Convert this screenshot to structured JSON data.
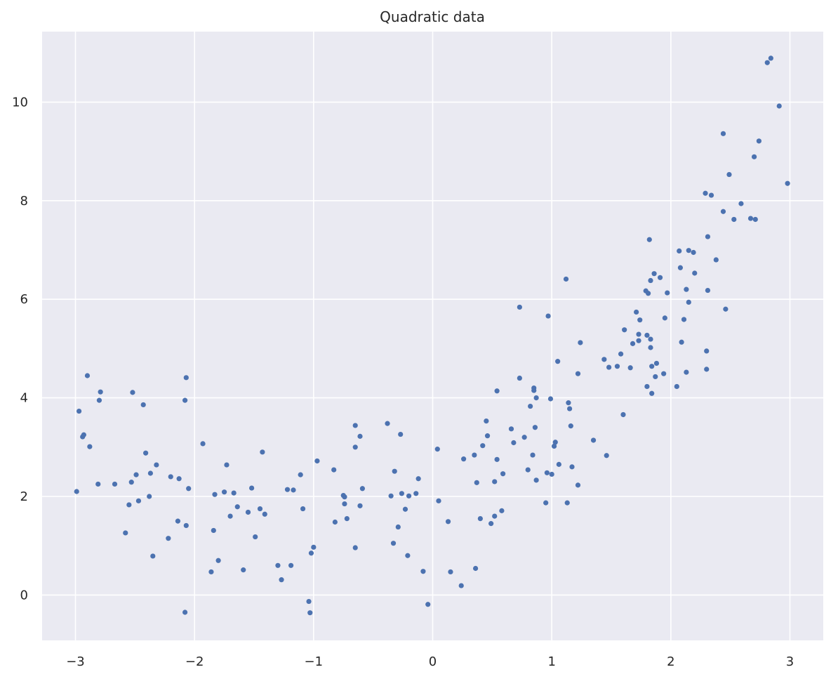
{
  "chart_data": {
    "type": "scatter",
    "title": "Quadratic data",
    "xlabel": "",
    "ylabel": "",
    "xlim": [
      -3.28,
      3.28
    ],
    "ylim": [
      -0.92,
      11.43
    ],
    "xticks": [
      -3,
      -2,
      -1,
      0,
      1,
      2,
      3
    ],
    "xtick_labels": [
      "−3",
      "−2",
      "−1",
      "0",
      "1",
      "2",
      "3"
    ],
    "yticks": [
      0,
      2,
      4,
      6,
      8,
      10
    ],
    "ytick_labels": [
      "0",
      "2",
      "4",
      "6",
      "8",
      "10"
    ],
    "grid": true,
    "style": "seaborn-darkgrid",
    "colors": {
      "background": "#eaeaf2",
      "grid": "#ffffff",
      "point": "#4c72b0"
    },
    "series": [
      {
        "points": [
          [
            -2.99,
            2.1
          ],
          [
            -2.97,
            3.73
          ],
          [
            -2.94,
            3.21
          ],
          [
            -2.93,
            3.25
          ],
          [
            -2.9,
            4.45
          ],
          [
            -2.88,
            3.01
          ],
          [
            -2.81,
            2.25
          ],
          [
            -2.8,
            3.95
          ],
          [
            -2.79,
            4.12
          ],
          [
            -2.67,
            2.25
          ],
          [
            -2.58,
            1.26
          ],
          [
            -2.55,
            1.83
          ],
          [
            -2.53,
            2.29
          ],
          [
            -2.52,
            4.11
          ],
          [
            -2.49,
            2.44
          ],
          [
            -2.47,
            1.91
          ],
          [
            -2.43,
            3.86
          ],
          [
            -2.41,
            2.88
          ],
          [
            -2.38,
            2.0
          ],
          [
            -2.37,
            2.47
          ],
          [
            -2.35,
            0.79
          ],
          [
            -2.32,
            2.64
          ],
          [
            -2.22,
            1.15
          ],
          [
            -2.2,
            2.4
          ],
          [
            -2.14,
            1.5
          ],
          [
            -2.13,
            2.36
          ],
          [
            -2.08,
            3.95
          ],
          [
            -2.08,
            -0.35
          ],
          [
            -2.07,
            4.41
          ],
          [
            -2.07,
            1.41
          ],
          [
            -2.05,
            2.16
          ],
          [
            -1.93,
            3.07
          ],
          [
            -1.86,
            0.47
          ],
          [
            -1.84,
            1.31
          ],
          [
            -1.83,
            2.04
          ],
          [
            -1.8,
            0.7
          ],
          [
            -1.75,
            2.09
          ],
          [
            -1.73,
            2.64
          ],
          [
            -1.7,
            1.6
          ],
          [
            -1.67,
            2.07
          ],
          [
            -1.64,
            1.79
          ],
          [
            -1.59,
            0.51
          ],
          [
            -1.55,
            1.68
          ],
          [
            -1.52,
            2.17
          ],
          [
            -1.49,
            1.18
          ],
          [
            -1.45,
            1.75
          ],
          [
            -1.43,
            2.9
          ],
          [
            -1.41,
            1.64
          ],
          [
            -1.3,
            0.6
          ],
          [
            -1.27,
            0.31
          ],
          [
            -1.22,
            2.14
          ],
          [
            -1.19,
            0.6
          ],
          [
            -1.17,
            2.13
          ],
          [
            -1.11,
            2.44
          ],
          [
            -1.09,
            1.75
          ],
          [
            -1.04,
            -0.13
          ],
          [
            -1.03,
            -0.36
          ],
          [
            -1.02,
            0.85
          ],
          [
            -1.0,
            0.97
          ],
          [
            -0.97,
            2.72
          ],
          [
            -0.83,
            2.54
          ],
          [
            -0.82,
            1.48
          ],
          [
            -0.75,
            2.02
          ],
          [
            -0.74,
            1.99
          ],
          [
            -0.74,
            1.85
          ],
          [
            -0.72,
            1.55
          ],
          [
            -0.65,
            3.44
          ],
          [
            -0.65,
            3.0
          ],
          [
            -0.65,
            0.96
          ],
          [
            -0.61,
            3.22
          ],
          [
            -0.61,
            1.81
          ],
          [
            -0.59,
            2.16
          ],
          [
            -0.38,
            3.48
          ],
          [
            -0.35,
            2.01
          ],
          [
            -0.33,
            1.05
          ],
          [
            -0.32,
            2.51
          ],
          [
            -0.29,
            1.38
          ],
          [
            -0.27,
            3.26
          ],
          [
            -0.26,
            2.06
          ],
          [
            -0.23,
            1.74
          ],
          [
            -0.21,
            0.8
          ],
          [
            -0.2,
            2.01
          ],
          [
            -0.14,
            2.06
          ],
          [
            -0.12,
            2.36
          ],
          [
            -0.08,
            0.48
          ],
          [
            -0.04,
            -0.19
          ],
          [
            0.04,
            2.96
          ],
          [
            0.05,
            1.91
          ],
          [
            0.13,
            1.49
          ],
          [
            0.15,
            0.47
          ],
          [
            0.24,
            0.19
          ],
          [
            0.26,
            2.76
          ],
          [
            0.35,
            2.84
          ],
          [
            0.36,
            0.54
          ],
          [
            0.37,
            2.28
          ],
          [
            0.4,
            1.55
          ],
          [
            0.42,
            3.03
          ],
          [
            0.45,
            3.53
          ],
          [
            0.46,
            3.23
          ],
          [
            0.49,
            1.45
          ],
          [
            0.52,
            2.3
          ],
          [
            0.52,
            1.6
          ],
          [
            0.54,
            2.75
          ],
          [
            0.54,
            4.14
          ],
          [
            0.58,
            1.71
          ],
          [
            0.59,
            2.46
          ],
          [
            0.66,
            3.37
          ],
          [
            0.68,
            3.09
          ],
          [
            0.73,
            5.84
          ],
          [
            0.73,
            4.4
          ],
          [
            0.77,
            3.2
          ],
          [
            0.8,
            2.54
          ],
          [
            0.82,
            3.83
          ],
          [
            0.84,
            2.84
          ],
          [
            0.85,
            4.2
          ],
          [
            0.85,
            4.15
          ],
          [
            0.86,
            3.4
          ],
          [
            0.87,
            4.0
          ],
          [
            0.87,
            2.33
          ],
          [
            0.95,
            1.87
          ],
          [
            0.96,
            2.48
          ],
          [
            0.97,
            5.66
          ],
          [
            0.99,
            3.98
          ],
          [
            1.0,
            2.45
          ],
          [
            1.02,
            3.02
          ],
          [
            1.03,
            3.1
          ],
          [
            1.05,
            4.74
          ],
          [
            1.06,
            2.65
          ],
          [
            1.12,
            6.41
          ],
          [
            1.13,
            1.87
          ],
          [
            1.14,
            3.9
          ],
          [
            1.15,
            3.78
          ],
          [
            1.16,
            3.43
          ],
          [
            1.17,
            2.6
          ],
          [
            1.22,
            4.49
          ],
          [
            1.22,
            2.23
          ],
          [
            1.24,
            5.12
          ],
          [
            1.35,
            3.14
          ],
          [
            1.44,
            4.78
          ],
          [
            1.46,
            2.83
          ],
          [
            1.48,
            4.62
          ],
          [
            1.55,
            4.64
          ],
          [
            1.58,
            4.89
          ],
          [
            1.6,
            3.66
          ],
          [
            1.61,
            5.38
          ],
          [
            1.66,
            4.61
          ],
          [
            1.68,
            5.1
          ],
          [
            1.71,
            5.74
          ],
          [
            1.73,
            5.16
          ],
          [
            1.73,
            5.29
          ],
          [
            1.74,
            5.58
          ],
          [
            1.79,
            6.17
          ],
          [
            1.8,
            5.27
          ],
          [
            1.8,
            4.23
          ],
          [
            1.81,
            6.12
          ],
          [
            1.82,
            7.21
          ],
          [
            1.83,
            5.02
          ],
          [
            1.83,
            6.38
          ],
          [
            1.83,
            5.19
          ],
          [
            1.84,
            4.64
          ],
          [
            1.84,
            4.09
          ],
          [
            1.86,
            6.52
          ],
          [
            1.87,
            4.43
          ],
          [
            1.88,
            4.7
          ],
          [
            1.91,
            6.44
          ],
          [
            1.94,
            4.49
          ],
          [
            1.95,
            5.62
          ],
          [
            1.97,
            6.13
          ],
          [
            2.05,
            4.23
          ],
          [
            2.07,
            6.98
          ],
          [
            2.08,
            6.64
          ],
          [
            2.09,
            5.13
          ],
          [
            2.11,
            5.59
          ],
          [
            2.13,
            6.2
          ],
          [
            2.13,
            4.52
          ],
          [
            2.15,
            6.99
          ],
          [
            2.15,
            5.94
          ],
          [
            2.19,
            6.95
          ],
          [
            2.2,
            6.53
          ],
          [
            2.29,
            8.15
          ],
          [
            2.3,
            4.95
          ],
          [
            2.3,
            4.58
          ],
          [
            2.31,
            7.27
          ],
          [
            2.31,
            6.18
          ],
          [
            2.34,
            8.11
          ],
          [
            2.38,
            6.8
          ],
          [
            2.44,
            7.78
          ],
          [
            2.44,
            9.36
          ],
          [
            2.46,
            5.8
          ],
          [
            2.49,
            8.53
          ],
          [
            2.53,
            7.62
          ],
          [
            2.59,
            7.94
          ],
          [
            2.67,
            7.64
          ],
          [
            2.7,
            8.89
          ],
          [
            2.71,
            7.62
          ],
          [
            2.74,
            9.21
          ],
          [
            2.81,
            10.8
          ],
          [
            2.84,
            10.89
          ],
          [
            2.91,
            9.92
          ],
          [
            2.98,
            8.35
          ]
        ]
      }
    ]
  }
}
